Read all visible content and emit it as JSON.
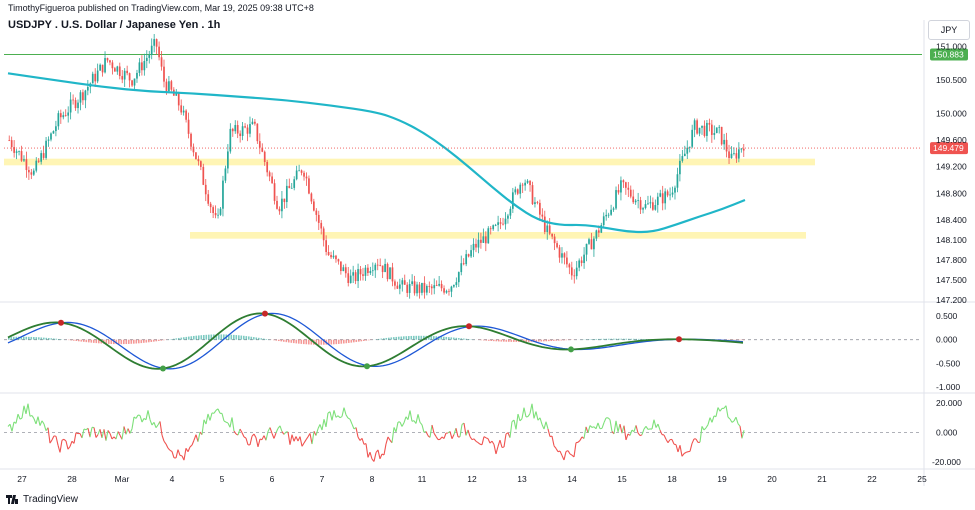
{
  "header": {
    "published": "TimothyFigueroa published on TradingView.com, Mar 19, 2025 09:38 UTC+8",
    "title": "USDJPY . U.S. Dollar / Japanese Yen . 1h",
    "currency": "JPY"
  },
  "footer": {
    "brand": "TradingView"
  },
  "colors": {
    "up": "#26a69a",
    "down": "#ef5350",
    "ma": "#20b6c8",
    "hline": "#4caf50",
    "zone": "#fff3a8",
    "price": "#ef5350",
    "macd_fast": "#2e7d32",
    "macd_slow": "#1e58d6",
    "macd_red": "#b71c1c",
    "rsi_up": "#7ee07a",
    "rsi_down": "#ef5350"
  },
  "chart_data": [
    {
      "type": "candlestick",
      "panel": "price",
      "price_ticks": [
        "151.000",
        "150.500",
        "150.000",
        "149.600",
        "149.200",
        "148.800",
        "148.400",
        "148.100",
        "147.800",
        "147.500",
        "147.200"
      ],
      "ylim": [
        147.2,
        151.25
      ],
      "x_labels": [
        "27",
        "28",
        "Mar",
        "4",
        "5",
        "6",
        "7",
        "8",
        "11",
        "12",
        "13",
        "14",
        "15",
        "18",
        "19",
        "20",
        "21",
        "22",
        "25"
      ],
      "last_price": "149.479",
      "last_price_value": 149.479,
      "horizontal_line": {
        "label": "150.883",
        "value": 150.883
      },
      "zones": [
        {
          "from": 149.22,
          "to": 149.32
        },
        {
          "from": 148.12,
          "to": 148.22
        }
      ],
      "moving_average_path": [
        [
          0,
          150.6
        ],
        [
          2,
          150.5
        ],
        [
          4,
          150.4
        ],
        [
          6,
          150.33
        ],
        [
          8,
          150.3
        ],
        [
          10,
          150.25
        ],
        [
          12,
          150.2
        ],
        [
          14,
          150.12
        ],
        [
          16,
          150.02
        ],
        [
          17,
          149.9
        ],
        [
          18,
          149.72
        ],
        [
          19,
          149.48
        ],
        [
          20,
          149.2
        ],
        [
          21,
          148.9
        ],
        [
          22,
          148.62
        ],
        [
          23,
          148.4
        ],
        [
          24,
          148.32
        ],
        [
          25,
          148.33
        ],
        [
          26,
          148.28
        ],
        [
          27,
          148.22
        ],
        [
          28,
          148.22
        ],
        [
          29,
          148.33
        ],
        [
          30,
          148.45
        ],
        [
          31,
          148.56
        ],
        [
          32,
          148.7
        ]
      ],
      "candle_path": [
        [
          0,
          149.6
        ],
        [
          1,
          149.1
        ],
        [
          2,
          149.9
        ],
        [
          3,
          150.3
        ],
        [
          4,
          150.8
        ],
        [
          5,
          150.5
        ],
        [
          6,
          151.05
        ],
        [
          6.3,
          150.5
        ],
        [
          7,
          150.1
        ],
        [
          8,
          148.9
        ],
        [
          8.5,
          148.3
        ],
        [
          9,
          149.7
        ],
        [
          10,
          149.8
        ],
        [
          11,
          148.6
        ],
        [
          12,
          149.2
        ],
        [
          13,
          147.9
        ],
        [
          14,
          147.5
        ],
        [
          15,
          147.8
        ],
        [
          16,
          147.4
        ],
        [
          17,
          147.35
        ],
        [
          18,
          147.4
        ],
        [
          19,
          148.0
        ],
        [
          20,
          148.3
        ],
        [
          21,
          149.05
        ],
        [
          22,
          148.2
        ],
        [
          23,
          147.6
        ],
        [
          24,
          148.2
        ],
        [
          25,
          148.9
        ],
        [
          26,
          148.6
        ],
        [
          27,
          148.8
        ],
        [
          28,
          149.8
        ],
        [
          29,
          149.7
        ],
        [
          29.5,
          149.3
        ],
        [
          30,
          149.55
        ]
      ]
    },
    {
      "type": "macd",
      "panel": "oscillator",
      "ticks": [
        "0.500",
        "0.000",
        "-0.500",
        "-1.000"
      ],
      "ylim": [
        -1.1,
        0.75
      ]
    },
    {
      "type": "line",
      "panel": "oscillator2",
      "ticks": [
        "20.000",
        "0.000",
        "-20.000"
      ],
      "ylim": [
        -24,
        26
      ]
    }
  ]
}
